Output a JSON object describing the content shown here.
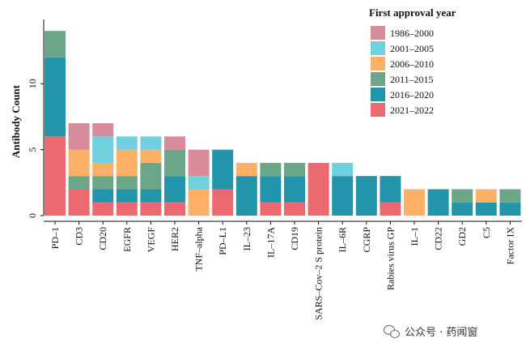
{
  "chart_data": {
    "type": "bar",
    "stacked": true,
    "title": "",
    "xlabel": "",
    "ylabel": "Antibody Count",
    "ylim": [
      0,
      14.5
    ],
    "yticks": [
      0,
      5,
      10
    ],
    "grid": false,
    "legend": {
      "title": "First approval year",
      "placement": "top-right"
    },
    "categories": [
      "PD–1",
      "CD3",
      "CD20",
      "EGFR",
      "VEGF",
      "HER2",
      "TNF–alpha",
      "PD–L1",
      "IL–23",
      "IL–17A",
      "CD19",
      "SARS–Cov–2 S protein",
      "IL–6R",
      "CGRP",
      "Rabies virus GP",
      "IL–1",
      "CD22",
      "GD2",
      "C5",
      "Factor IX"
    ],
    "series": [
      {
        "name": "2021–2022",
        "color": "#ec6a6f",
        "values": [
          6,
          2,
          1,
          1,
          1,
          1,
          0,
          2,
          0,
          1,
          1,
          4,
          0,
          0,
          1,
          0,
          0,
          0,
          0,
          0
        ]
      },
      {
        "name": "2016–2020",
        "color": "#2395aa",
        "values": [
          6,
          0,
          1,
          1,
          1,
          2,
          0,
          3,
          3,
          2,
          2,
          0,
          3,
          3,
          2,
          0,
          2,
          1,
          1,
          1
        ]
      },
      {
        "name": "2011–2015",
        "color": "#6ca689",
        "values": [
          2,
          1,
          1,
          1,
          2,
          2,
          0,
          0,
          0,
          1,
          1,
          0,
          0,
          0,
          0,
          0,
          0,
          1,
          0,
          1
        ]
      },
      {
        "name": "2006–2010",
        "color": "#fdb067",
        "values": [
          0,
          2,
          1,
          2,
          1,
          0,
          2,
          0,
          1,
          0,
          0,
          0,
          0,
          0,
          0,
          2,
          0,
          0,
          1,
          0
        ]
      },
      {
        "name": "2001–2005",
        "color": "#6fd1de",
        "values": [
          0,
          0,
          2,
          1,
          1,
          0,
          1,
          0,
          0,
          0,
          0,
          0,
          1,
          0,
          0,
          0,
          0,
          0,
          0,
          0
        ]
      },
      {
        "name": "1986–2000",
        "color": "#d88b99",
        "values": [
          0,
          2,
          1,
          0,
          0,
          1,
          2,
          0,
          0,
          0,
          0,
          0,
          0,
          0,
          0,
          0,
          0,
          0,
          0,
          0
        ]
      }
    ],
    "legend_order": [
      "1986–2000",
      "2001–2005",
      "2006–2010",
      "2011–2015",
      "2016–2020",
      "2021–2022"
    ]
  },
  "watermark": {
    "icon": "wechat-icon",
    "text": "公众号 · 药闻窗"
  }
}
